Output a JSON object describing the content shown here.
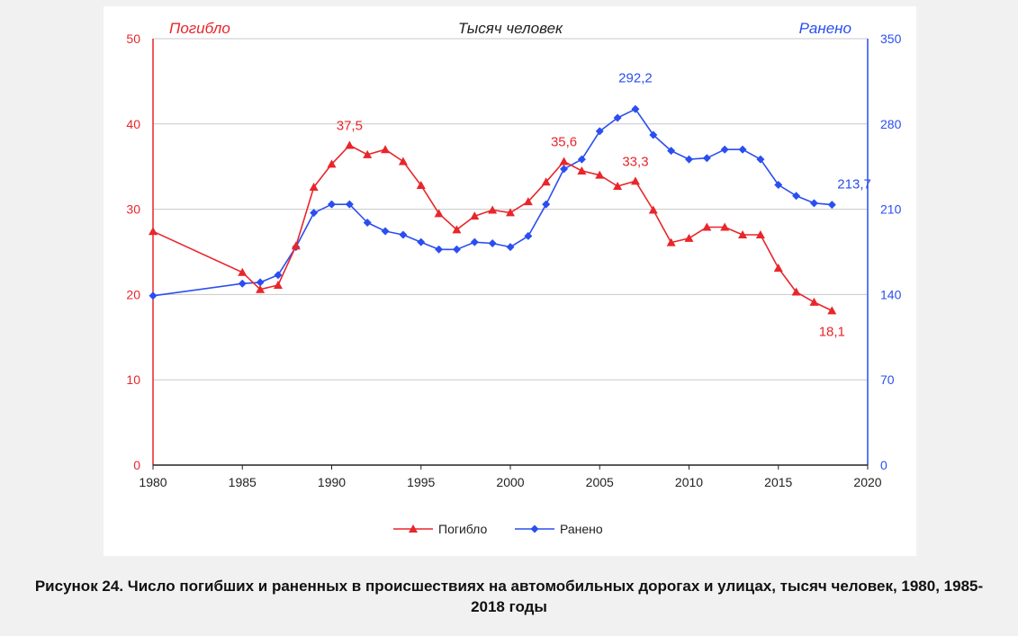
{
  "chart_data": {
    "type": "line",
    "header": {
      "left_label": "Погибло",
      "center_label": "Тысяч человек",
      "right_label": "Ранено"
    },
    "x": [
      1980,
      1985,
      1986,
      1987,
      1988,
      1989,
      1990,
      1991,
      1992,
      1993,
      1994,
      1995,
      1996,
      1997,
      1998,
      1999,
      2000,
      2001,
      2002,
      2003,
      2004,
      2005,
      2006,
      2007,
      2008,
      2009,
      2010,
      2011,
      2012,
      2013,
      2014,
      2015,
      2016,
      2017,
      2018
    ],
    "xlim": [
      1980,
      2020
    ],
    "xticks": [
      1980,
      1985,
      1990,
      1995,
      2000,
      2005,
      2010,
      2015,
      2020
    ],
    "y_left": {
      "lim": [
        0,
        50
      ],
      "ticks": [
        0,
        10,
        20,
        30,
        40,
        50
      ],
      "color": "#e8262b"
    },
    "y_right": {
      "lim": [
        0,
        350
      ],
      "ticks": [
        0,
        70,
        140,
        210,
        280,
        350
      ],
      "color": "#2a4ef0"
    },
    "grid": true,
    "legend_position": "bottom-center",
    "series": [
      {
        "name": "Погибло",
        "axis": "left",
        "color": "#e8262b",
        "marker": "triangle",
        "values": [
          27.4,
          22.6,
          20.6,
          21.1,
          25.7,
          32.6,
          35.3,
          37.5,
          36.4,
          37.0,
          35.6,
          32.8,
          29.5,
          27.6,
          29.2,
          29.9,
          29.6,
          30.9,
          33.2,
          35.6,
          34.5,
          34.0,
          32.7,
          33.3,
          29.9,
          26.1,
          26.6,
          27.9,
          27.9,
          27.0,
          27.0,
          23.1,
          20.3,
          19.1,
          18.1
        ]
      },
      {
        "name": "Ранено",
        "axis": "right",
        "color": "#2a4ef0",
        "marker": "diamond",
        "values": [
          139.0,
          149.0,
          150.0,
          156.0,
          179.0,
          207.0,
          214.0,
          214.0,
          199.0,
          192.0,
          189.0,
          183.0,
          177.0,
          177.0,
          183.0,
          182.0,
          179.0,
          188.0,
          214.0,
          243.0,
          251.0,
          274.0,
          285.0,
          292.2,
          271.0,
          258.0,
          251.0,
          252.0,
          259.0,
          259.0,
          251.0,
          230.0,
          221.0,
          215.0,
          213.7
        ]
      }
    ],
    "annotations": [
      {
        "series": 0,
        "x": 1991,
        "text": "37,5",
        "pos": "above"
      },
      {
        "series": 0,
        "x": 2003,
        "text": "35,6",
        "pos": "above"
      },
      {
        "series": 0,
        "x": 2007,
        "text": "33,3",
        "pos": "above"
      },
      {
        "series": 0,
        "x": 2018,
        "text": "18,1",
        "pos": "below"
      },
      {
        "series": 1,
        "x": 2007,
        "text": "292,2",
        "pos": "above"
      },
      {
        "series": 1,
        "x": 2018,
        "text": "213,7",
        "pos": "right"
      }
    ]
  },
  "caption": "Рисунок 24. Число погибших и раненных в происшествиях на автомобильных дорогах и улицах, тысяч человек, 1980, 1985-2018 годы"
}
